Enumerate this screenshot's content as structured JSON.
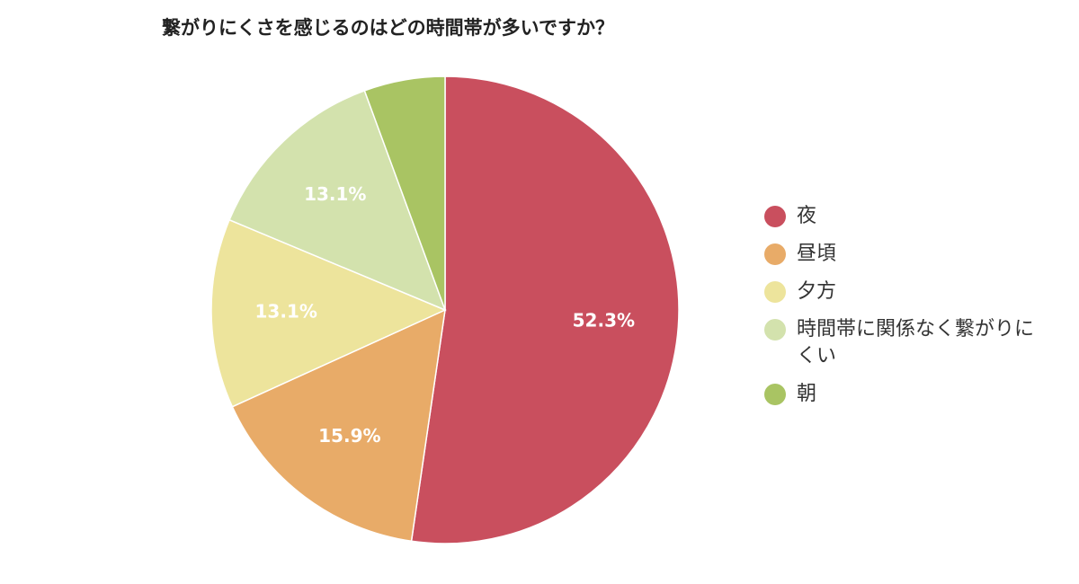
{
  "chart_data": {
    "type": "pie",
    "title": "繋がりにくさを感じるのはどの時間帯が多いですか？",
    "categories": [
      "夜",
      "昼頃",
      "夕方",
      "時間帯に関係なく繋がりにくい",
      "朝"
    ],
    "values": [
      52.3,
      15.9,
      13.1,
      13.1,
      5.6
    ],
    "value_labels": [
      "52.3%",
      "15.9%",
      "13.1%",
      "13.1%",
      null
    ],
    "colors": [
      "#c94f5e",
      "#e8ab68",
      "#ede49c",
      "#d3e2ad",
      "#a9c463"
    ],
    "legend": "right"
  }
}
